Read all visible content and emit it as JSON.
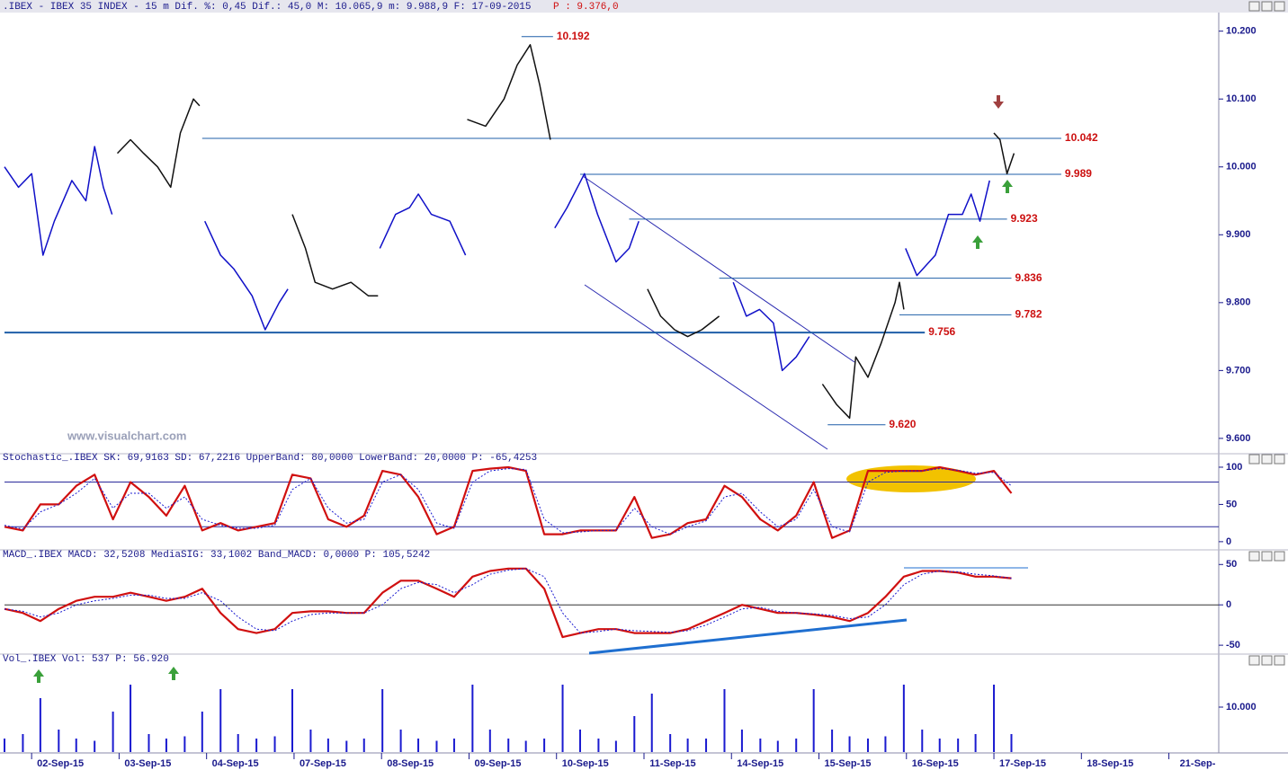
{
  "chart_data": [
    {
      "type": "line",
      "title": ".IBEX - IBEX 35 INDEX -   15 m Dif. %: 0,45 Dif.: 45,0 M: 10.065,9 m: 9.988,9 F: 17-09-2015",
      "subtitle": "P : 9.376,0",
      "annotation": "www.visualchart.com",
      "xlim": [
        -0.31,
        13.57
      ],
      "ylim": [
        9.584,
        10.23
      ],
      "yticks": [
        {
          "value": 10.2,
          "label": "10.200"
        },
        {
          "value": 10.1,
          "label": "10.100"
        },
        {
          "value": 10.0,
          "label": "10.000"
        },
        {
          "value": 9.9,
          "label": "9.900"
        },
        {
          "value": 9.8,
          "label": "9.800"
        },
        {
          "value": 9.7,
          "label": "9.700"
        },
        {
          "value": 9.6,
          "label": "9.600"
        }
      ],
      "series": [
        {
          "color": "#1010c8",
          "x": [
            -0.31,
            -0.15,
            0,
            0.13,
            0.26,
            0.46,
            0.62,
            0.72,
            0.82,
            0.92
          ],
          "values": [
            10.0,
            9.97,
            9.99,
            9.87,
            9.92,
            9.98,
            9.95,
            10.03,
            9.97,
            9.93
          ]
        },
        {
          "color": "#111111",
          "x": [
            0.98,
            1.13,
            1.28,
            1.44,
            1.59,
            1.7,
            1.85,
            1.92
          ],
          "values": [
            10.02,
            10.04,
            10.02,
            10.0,
            9.97,
            10.05,
            10.1,
            10.09
          ]
        },
        {
          "color": "#1010c8",
          "x": [
            1.98,
            2.16,
            2.31,
            2.52,
            2.67,
            2.83,
            2.93
          ],
          "values": [
            9.92,
            9.87,
            9.85,
            9.81,
            9.76,
            9.8,
            9.82
          ]
        },
        {
          "color": "#111111",
          "x": [
            2.98,
            3.13,
            3.24,
            3.44,
            3.65,
            3.85,
            3.96
          ],
          "values": [
            9.93,
            9.88,
            9.83,
            9.82,
            9.83,
            9.81,
            9.81
          ]
        },
        {
          "color": "#1010c8",
          "x": [
            3.98,
            4.16,
            4.32,
            4.42,
            4.57,
            4.78,
            4.96
          ],
          "values": [
            9.88,
            9.93,
            9.94,
            9.96,
            9.93,
            9.92,
            9.87
          ]
        },
        {
          "color": "#111111",
          "x": [
            4.98,
            5.19,
            5.4,
            5.55,
            5.7,
            5.81,
            5.93
          ],
          "values": [
            10.07,
            10.06,
            10.1,
            10.15,
            10.18,
            10.12,
            10.04
          ]
        },
        {
          "color": "#1010c8",
          "x": [
            5.98,
            6.12,
            6.32,
            6.47,
            6.68,
            6.83,
            6.94
          ],
          "values": [
            9.91,
            9.94,
            9.99,
            9.93,
            9.86,
            9.88,
            9.92
          ]
        },
        {
          "color": "#111111",
          "x": [
            7.04,
            7.19,
            7.35,
            7.5,
            7.66,
            7.86
          ],
          "values": [
            9.82,
            9.78,
            9.76,
            9.75,
            9.76,
            9.78
          ]
        },
        {
          "color": "#1010c8",
          "x": [
            8.02,
            8.17,
            8.32,
            8.48,
            8.58,
            8.74,
            8.89
          ],
          "values": [
            9.83,
            9.78,
            9.79,
            9.77,
            9.7,
            9.72,
            9.75
          ]
        },
        {
          "color": "#111111",
          "x": [
            9.04,
            9.2,
            9.35,
            9.42,
            9.56,
            9.71,
            9.87,
            9.92,
            9.97
          ],
          "values": [
            9.68,
            9.65,
            9.63,
            9.72,
            9.69,
            9.74,
            9.8,
            9.83,
            9.79
          ]
        },
        {
          "color": "#1010c8",
          "x": [
            9.99,
            10.12,
            10.33,
            10.48,
            10.64,
            10.74,
            10.84,
            10.95
          ],
          "values": [
            9.88,
            9.84,
            9.87,
            9.93,
            9.93,
            9.96,
            9.92,
            9.98
          ]
        },
        {
          "color": "#111111",
          "x": [
            11.0,
            11.07,
            11.15,
            11.23
          ],
          "values": [
            10.05,
            10.04,
            9.99,
            10.02
          ]
        }
      ],
      "levels": [
        {
          "value": 10.192,
          "label": "10.192",
          "x": [
            5.6,
            5.96
          ]
        },
        {
          "value": 10.042,
          "label": "10.042",
          "x": [
            1.95,
            11.77
          ]
        },
        {
          "value": 9.989,
          "label": "9.989",
          "x": [
            6.27,
            11.77
          ]
        },
        {
          "value": 9.923,
          "label": "9.923",
          "x": [
            6.83,
            11.15
          ]
        },
        {
          "value": 9.836,
          "label": "9.836",
          "x": [
            7.86,
            11.2
          ]
        },
        {
          "value": 9.782,
          "label": "9.782",
          "x": [
            9.92,
            11.2
          ]
        },
        {
          "value": 9.756,
          "label": "9.756",
          "x": [
            -0.31,
            10.21
          ]
        },
        {
          "value": 9.62,
          "label": "9.620",
          "x": [
            9.1,
            9.76
          ]
        }
      ]
    },
    {
      "type": "line",
      "title": "Stochastic_.IBEX SK: 69,9163 SD: 67,2216 UpperBand: 80,0000 LowerBand: 20,0000 P: -65,4253",
      "xlim": [
        -0.31,
        13.57
      ],
      "ylim": [
        -11,
        106
      ],
      "yticks": [
        0,
        50,
        100
      ],
      "hlines": [
        80,
        20
      ],
      "x": [
        -0.31,
        -0.1,
        0.1,
        0.31,
        0.51,
        0.72,
        0.93,
        1.13,
        1.34,
        1.54,
        1.75,
        1.95,
        2.16,
        2.36,
        2.57,
        2.78,
        2.98,
        3.19,
        3.39,
        3.6,
        3.8,
        4.01,
        4.22,
        4.42,
        4.63,
        4.83,
        5.04,
        5.24,
        5.45,
        5.65,
        5.86,
        6.07,
        6.27,
        6.48,
        6.68,
        6.89,
        7.09,
        7.3,
        7.5,
        7.71,
        7.92,
        8.12,
        8.33,
        8.53,
        8.74,
        8.94,
        9.15,
        9.35,
        9.56,
        9.76,
        9.97,
        10.18,
        10.38,
        10.59,
        10.79,
        11.0,
        11.2
      ],
      "series": [
        {
          "color": "#d01010",
          "values": [
            20,
            15,
            50,
            50,
            75,
            90,
            30,
            80,
            60,
            35,
            75,
            15,
            25,
            15,
            20,
            25,
            90,
            85,
            30,
            20,
            35,
            95,
            90,
            60,
            10,
            20,
            95,
            98,
            100,
            95,
            10,
            10,
            15,
            15,
            15,
            60,
            5,
            10,
            25,
            30,
            75,
            60,
            30,
            15,
            35,
            80,
            5,
            15,
            95,
            95,
            95,
            95,
            100,
            95,
            90,
            95,
            65
          ]
        },
        {
          "color": "#1a1ad0",
          "dash": true,
          "values": [
            22,
            17,
            40,
            50,
            65,
            85,
            45,
            65,
            65,
            45,
            60,
            30,
            22,
            18,
            18,
            22,
            70,
            85,
            45,
            25,
            30,
            80,
            90,
            70,
            25,
            18,
            80,
            95,
            98,
            97,
            30,
            12,
            13,
            15,
            15,
            45,
            20,
            10,
            20,
            28,
            60,
            65,
            40,
            20,
            30,
            70,
            20,
            13,
            80,
            93,
            95,
            95,
            98,
            96,
            92,
            93,
            75
          ]
        }
      ]
    },
    {
      "type": "line",
      "title": "MACD_.IBEX MACD: 32,5208 MediaSIG: 33,1002 Band_MACD: 0,0000 P: 105,5242",
      "xlim": [
        -0.31,
        13.57
      ],
      "ylim": [
        -61,
        57
      ],
      "yticks": [
        -50,
        0,
        50
      ],
      "hlines": [
        0
      ],
      "x": [
        -0.31,
        -0.1,
        0.1,
        0.31,
        0.51,
        0.72,
        0.93,
        1.13,
        1.34,
        1.54,
        1.75,
        1.95,
        2.16,
        2.36,
        2.57,
        2.78,
        2.98,
        3.19,
        3.39,
        3.6,
        3.8,
        4.01,
        4.22,
        4.42,
        4.63,
        4.83,
        5.04,
        5.24,
        5.45,
        5.65,
        5.86,
        6.07,
        6.27,
        6.48,
        6.68,
        6.89,
        7.09,
        7.3,
        7.5,
        7.71,
        7.92,
        8.12,
        8.33,
        8.53,
        8.74,
        8.94,
        9.15,
        9.35,
        9.56,
        9.76,
        9.97,
        10.18,
        10.38,
        10.59,
        10.79,
        11.0,
        11.2
      ],
      "series": [
        {
          "color": "#d01010",
          "values": [
            -5,
            -10,
            -20,
            -5,
            5,
            10,
            10,
            15,
            10,
            5,
            10,
            20,
            -10,
            -30,
            -35,
            -30,
            -10,
            -8,
            -8,
            -10,
            -10,
            15,
            30,
            30,
            20,
            10,
            35,
            42,
            45,
            45,
            20,
            -40,
            -35,
            -30,
            -30,
            -35,
            -35,
            -35,
            -30,
            -20,
            -10,
            0,
            -5,
            -10,
            -10,
            -12,
            -15,
            -20,
            -10,
            10,
            35,
            42,
            42,
            40,
            35,
            35,
            33
          ]
        },
        {
          "color": "#1a1ad0",
          "dash": true,
          "values": [
            -5,
            -8,
            -15,
            -10,
            0,
            5,
            8,
            12,
            12,
            8,
            8,
            15,
            5,
            -15,
            -30,
            -32,
            -20,
            -12,
            -10,
            -10,
            -10,
            0,
            20,
            28,
            25,
            15,
            25,
            38,
            43,
            45,
            35,
            -10,
            -35,
            -33,
            -30,
            -32,
            -33,
            -34,
            -32,
            -25,
            -15,
            -5,
            -3,
            -8,
            -10,
            -11,
            -13,
            -17,
            -15,
            0,
            25,
            38,
            42,
            41,
            38,
            36,
            33
          ]
        }
      ]
    },
    {
      "type": "bar",
      "title": "Vol_.IBEX Vol: 537 P: 56.920",
      "color": "#1a1ad0",
      "xlim": [
        -0.31,
        13.57
      ],
      "ylim": [
        0,
        19000
      ],
      "yticks": [
        {
          "value": 10000,
          "label": "10.000"
        }
      ],
      "xticks": [
        {
          "value": 0,
          "label": "02-Sep-15"
        },
        {
          "value": 1,
          "label": "03-Sep-15"
        },
        {
          "value": 2,
          "label": "04-Sep-15"
        },
        {
          "value": 3,
          "label": "07-Sep-15"
        },
        {
          "value": 4,
          "label": "08-Sep-15"
        },
        {
          "value": 5,
          "label": "09-Sep-15"
        },
        {
          "value": 6,
          "label": "10-Sep-15"
        },
        {
          "value": 7,
          "label": "11-Sep-15"
        },
        {
          "value": 8,
          "label": "14-Sep-15"
        },
        {
          "value": 9,
          "label": "15-Sep-15"
        },
        {
          "value": 10,
          "label": "16-Sep-15"
        },
        {
          "value": 11,
          "label": "17-Sep-15"
        },
        {
          "value": 12,
          "label": "18-Sep-15"
        },
        {
          "value": 13,
          "label": "21-Sep-"
        }
      ],
      "x": [
        -0.31,
        -0.1,
        0.1,
        0.31,
        0.51,
        0.72,
        0.93,
        1.13,
        1.34,
        1.54,
        1.75,
        1.95,
        2.16,
        2.36,
        2.57,
        2.78,
        2.98,
        3.19,
        3.39,
        3.6,
        3.8,
        4.01,
        4.22,
        4.42,
        4.63,
        4.83,
        5.04,
        5.24,
        5.45,
        5.65,
        5.86,
        6.07,
        6.27,
        6.48,
        6.68,
        6.89,
        7.09,
        7.3,
        7.5,
        7.71,
        7.92,
        8.12,
        8.33,
        8.53,
        8.74,
        8.94,
        9.15,
        9.35,
        9.56,
        9.76,
        9.97,
        10.18,
        10.38,
        10.59,
        10.79,
        11.0,
        11.2
      ],
      "values": [
        3000,
        4000,
        12000,
        5000,
        3000,
        2500,
        9000,
        15000,
        4000,
        3000,
        3500,
        9000,
        14000,
        4000,
        3000,
        3500,
        14000,
        5000,
        3000,
        2500,
        3000,
        14000,
        5000,
        3000,
        2500,
        3000,
        15000,
        5000,
        3000,
        2500,
        3000,
        15000,
        5000,
        3000,
        2500,
        8000,
        13000,
        4000,
        3000,
        3000,
        14000,
        5000,
        3000,
        2500,
        3000,
        14000,
        5000,
        3500,
        3000,
        3500,
        15000,
        5000,
        3000,
        3000,
        4000,
        15000,
        4000
      ]
    }
  ]
}
